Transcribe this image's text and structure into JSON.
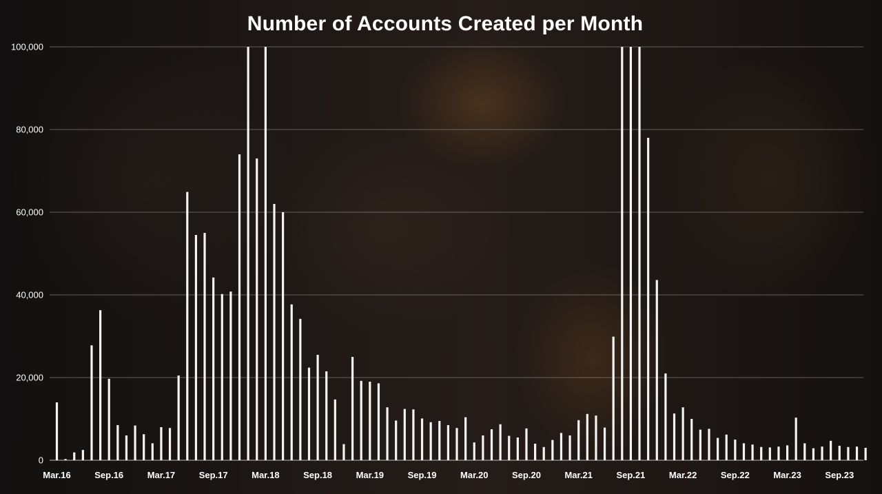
{
  "chart_data": {
    "type": "bar",
    "title": "Number of Accounts Created per Month",
    "xlabel": "",
    "ylabel": "",
    "ylim": [
      0,
      100000
    ],
    "y_ticks": [
      {
        "value": 0,
        "label": "0"
      },
      {
        "value": 20000,
        "label": "20,000"
      },
      {
        "value": 40000,
        "label": "40,000"
      },
      {
        "value": 60000,
        "label": "60,000"
      },
      {
        "value": 80000,
        "label": "80,000"
      },
      {
        "value": 100000,
        "label": "100,000"
      }
    ],
    "grid": true,
    "legend": "none",
    "bar_color": "#f4f4f4",
    "categories": [
      "Mar.16",
      "Apr.16",
      "May.16",
      "Jun.16",
      "Jul.16",
      "Aug.16",
      "Sep.16",
      "Oct.16",
      "Nov.16",
      "Dec.16",
      "Jan.17",
      "Feb.17",
      "Mar.17",
      "Apr.17",
      "May.17",
      "Jun.17",
      "Jul.17",
      "Aug.17",
      "Sep.17",
      "Oct.17",
      "Nov.17",
      "Dec.17",
      "Jan.18",
      "Feb.18",
      "Mar.18",
      "Apr.18",
      "May.18",
      "Jun.18",
      "Jul.18",
      "Aug.18",
      "Sep.18",
      "Oct.18",
      "Nov.18",
      "Dec.18",
      "Jan.19",
      "Feb.19",
      "Mar.19",
      "Apr.19",
      "May.19",
      "Jun.19",
      "Jul.19",
      "Aug.19",
      "Sep.19",
      "Oct.19",
      "Nov.19",
      "Dec.19",
      "Jan.20",
      "Feb.20",
      "Mar.20",
      "Apr.20",
      "May.20",
      "Jun.20",
      "Jul.20",
      "Aug.20",
      "Sep.20",
      "Oct.20",
      "Nov.20",
      "Dec.20",
      "Jan.21",
      "Feb.21",
      "Mar.21",
      "Apr.21",
      "May.21",
      "Jun.21",
      "Jul.21",
      "Aug.21",
      "Sep.21",
      "Oct.21",
      "Nov.21",
      "Dec.21",
      "Jan.22",
      "Feb.22",
      "Mar.22",
      "Apr.22",
      "May.22",
      "Jun.22",
      "Jul.22",
      "Aug.22",
      "Sep.22",
      "Oct.22",
      "Nov.22",
      "Dec.22",
      "Jan.23",
      "Feb.23",
      "Mar.23",
      "Apr.23",
      "May.23",
      "Jun.23",
      "Jul.23",
      "Aug.23",
      "Sep.23",
      "Oct.23",
      "Nov.23",
      "Dec.23"
    ],
    "values": [
      14000,
      300,
      1900,
      2500,
      27800,
      36300,
      19700,
      8500,
      6000,
      8400,
      6300,
      4100,
      8000,
      7800,
      20500,
      64900,
      54500,
      55000,
      44200,
      40200,
      40800,
      74000,
      100000,
      73000,
      100000,
      62000,
      60000,
      37700,
      34200,
      22400,
      25500,
      21500,
      14700,
      3900,
      25000,
      19200,
      19000,
      18600,
      12800,
      9600,
      12400,
      12300,
      10100,
      9200,
      9500,
      8500,
      7800,
      10400,
      4300,
      6000,
      7500,
      8700,
      5900,
      5500,
      7700,
      4000,
      3200,
      4900,
      6600,
      6000,
      9700,
      11200,
      10800,
      7900,
      29900,
      100000,
      100000,
      100000,
      78000,
      43600,
      21000,
      11300,
      12800,
      10000,
      7400,
      7600,
      5400,
      6200,
      5000,
      4100,
      3800,
      3200,
      3100,
      3300,
      3600,
      10300,
      4100,
      2900,
      3300,
      4700,
      3500,
      3200,
      3300,
      3000
    ],
    "x_tick_labels": [
      {
        "index": 0,
        "label": "Mar.16"
      },
      {
        "index": 6,
        "label": "Sep.16"
      },
      {
        "index": 12,
        "label": "Mar.17"
      },
      {
        "index": 18,
        "label": "Sep.17"
      },
      {
        "index": 24,
        "label": "Mar.18"
      },
      {
        "index": 30,
        "label": "Sep.18"
      },
      {
        "index": 36,
        "label": "Mar.19"
      },
      {
        "index": 42,
        "label": "Sep.19"
      },
      {
        "index": 48,
        "label": "Mar.20"
      },
      {
        "index": 54,
        "label": "Sep.20"
      },
      {
        "index": 60,
        "label": "Mar.21"
      },
      {
        "index": 66,
        "label": "Sep.21"
      },
      {
        "index": 72,
        "label": "Mar.22"
      },
      {
        "index": 78,
        "label": "Sep.22"
      },
      {
        "index": 84,
        "label": "Mar.23"
      },
      {
        "index": 90,
        "label": "Sep.23"
      }
    ]
  }
}
